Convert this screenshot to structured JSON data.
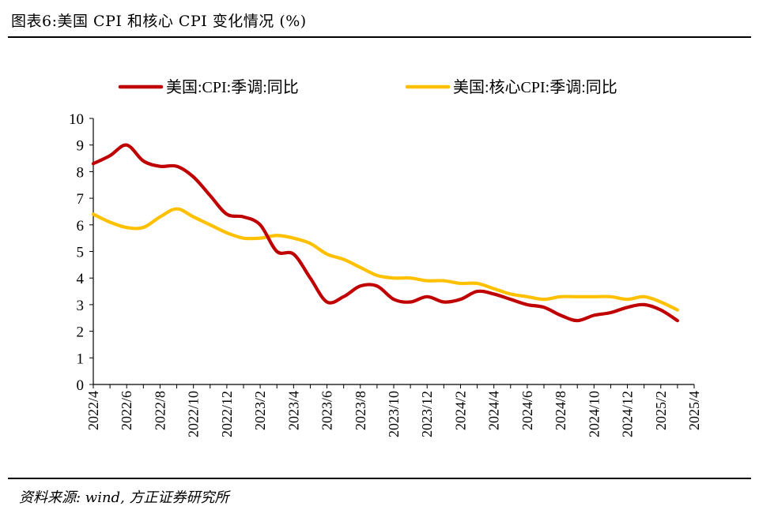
{
  "header": {
    "title": "图表6:美国 CPI 和核心 CPI 变化情况 (%)"
  },
  "footer": {
    "source": "资料来源: wind, 方正证券研究所"
  },
  "chart_data": {
    "type": "line",
    "title": "图表6:美国 CPI 和核心 CPI 变化情况 (%)",
    "xlabel": "",
    "ylabel": "",
    "ylim": [
      0,
      10
    ],
    "yticks": [
      0,
      1,
      2,
      3,
      4,
      5,
      6,
      7,
      8,
      9,
      10
    ],
    "grid": false,
    "legend": "top",
    "x": [
      "2022/4",
      "2022/5",
      "2022/6",
      "2022/7",
      "2022/8",
      "2022/9",
      "2022/10",
      "2022/11",
      "2022/12",
      "2023/1",
      "2023/2",
      "2023/3",
      "2023/4",
      "2023/5",
      "2023/6",
      "2023/7",
      "2023/8",
      "2023/9",
      "2023/10",
      "2023/11",
      "2023/12",
      "2024/1",
      "2024/2",
      "2024/3",
      "2024/4",
      "2024/5",
      "2024/6",
      "2024/7",
      "2024/8",
      "2024/9",
      "2024/10",
      "2024/11",
      "2024/12",
      "2025/1",
      "2025/2",
      "2025/3",
      "2025/4"
    ],
    "xticks": [
      "2022/4",
      "2022/6",
      "2022/8",
      "2022/10",
      "2022/12",
      "2023/2",
      "2023/4",
      "2023/6",
      "2023/8",
      "2023/10",
      "2023/12",
      "2024/2",
      "2024/4",
      "2024/6",
      "2024/8",
      "2024/10",
      "2024/12",
      "2025/2",
      "2025/4"
    ],
    "series": [
      {
        "name": "美国:CPI:季调:同比",
        "color": "#c00000",
        "values": [
          8.3,
          8.6,
          9.0,
          8.4,
          8.2,
          8.2,
          7.8,
          7.1,
          6.4,
          6.3,
          6.0,
          5.0,
          4.9,
          4.0,
          3.1,
          3.3,
          3.7,
          3.7,
          3.2,
          3.1,
          3.3,
          3.1,
          3.2,
          3.5,
          3.4,
          3.2,
          3.0,
          2.9,
          2.6,
          2.4,
          2.6,
          2.7,
          2.9,
          3.0,
          2.8,
          2.4,
          null
        ]
      },
      {
        "name": "美国:核心CPI:季调:同比",
        "color": "#ffc000",
        "values": [
          6.4,
          6.1,
          5.9,
          5.9,
          6.3,
          6.6,
          6.3,
          6.0,
          5.7,
          5.5,
          5.5,
          5.6,
          5.5,
          5.3,
          4.9,
          4.7,
          4.4,
          4.1,
          4.0,
          4.0,
          3.9,
          3.9,
          3.8,
          3.8,
          3.6,
          3.4,
          3.3,
          3.2,
          3.3,
          3.3,
          3.3,
          3.3,
          3.2,
          3.3,
          3.1,
          2.8,
          null
        ]
      }
    ]
  }
}
